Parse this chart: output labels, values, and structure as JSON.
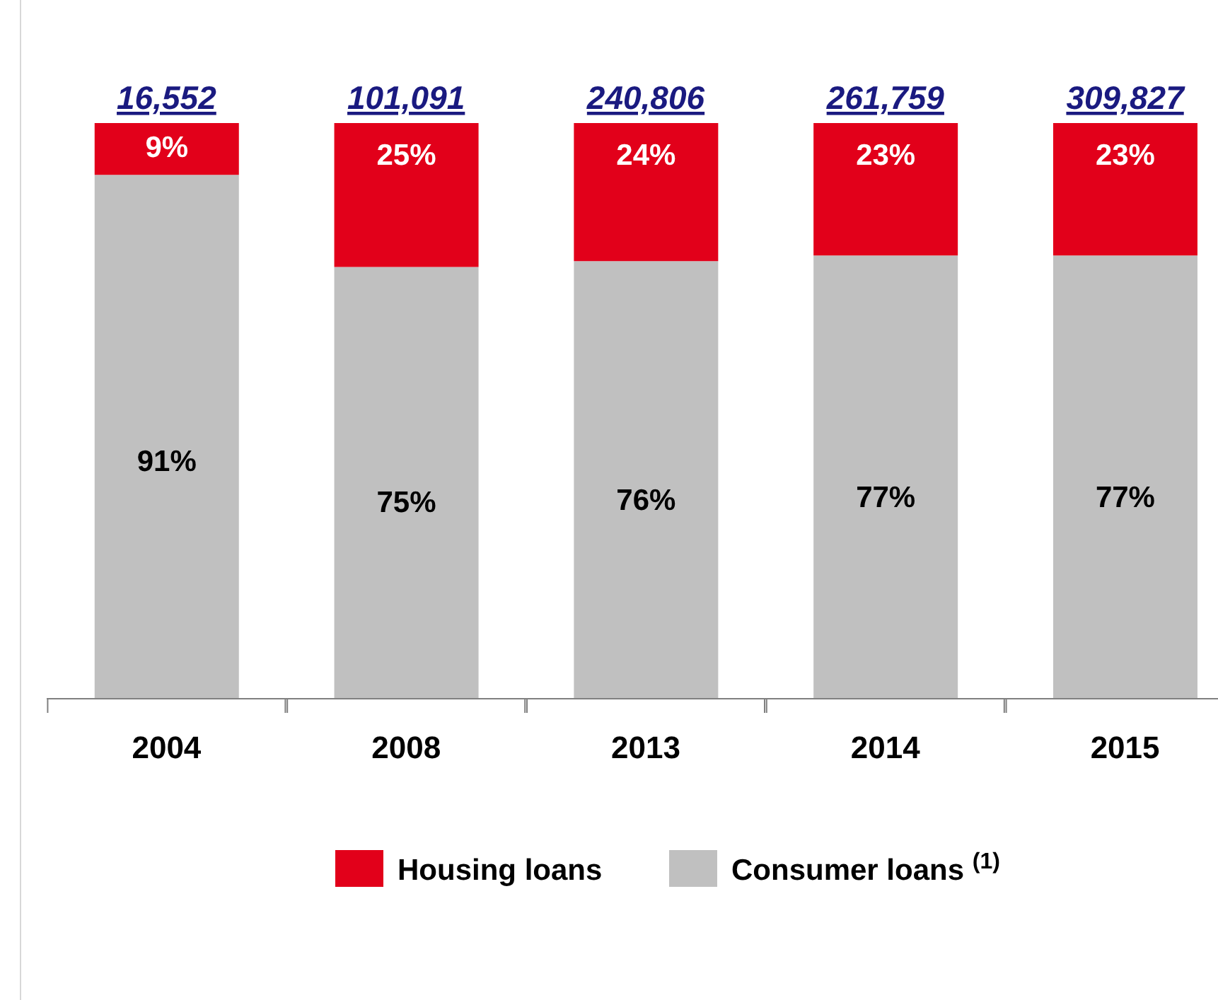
{
  "chart_data": {
    "type": "bar",
    "stacked": true,
    "categories": [
      "2004",
      "2008",
      "2013",
      "2014",
      "2015"
    ],
    "series": [
      {
        "name": "Consumer loans $^{(1)}$",
        "color": "#c0c0c0",
        "values": [
          91,
          75,
          76,
          77,
          77
        ],
        "value_labels": [
          "91%",
          "75%",
          "76%",
          "77%",
          "77%"
        ]
      },
      {
        "name": "Housing loans",
        "color": "#e2001a",
        "values": [
          9,
          25,
          24,
          23,
          23
        ],
        "value_labels": [
          "9%",
          "25%",
          "24%",
          "23%",
          "23%"
        ]
      }
    ],
    "annotations": [
      {
        "text": "16,552",
        "x": "2004",
        "y": 100
      },
      {
        "text": "101,091",
        "x": "2008",
        "y": 100
      },
      {
        "text": "240,806",
        "x": "2013",
        "y": 100
      },
      {
        "text": "261,759",
        "x": "2014",
        "y": 100
      },
      {
        "text": "309,827",
        "x": "2015",
        "y": 100
      }
    ],
    "legend": "bottom",
    "grid": false
  }
}
